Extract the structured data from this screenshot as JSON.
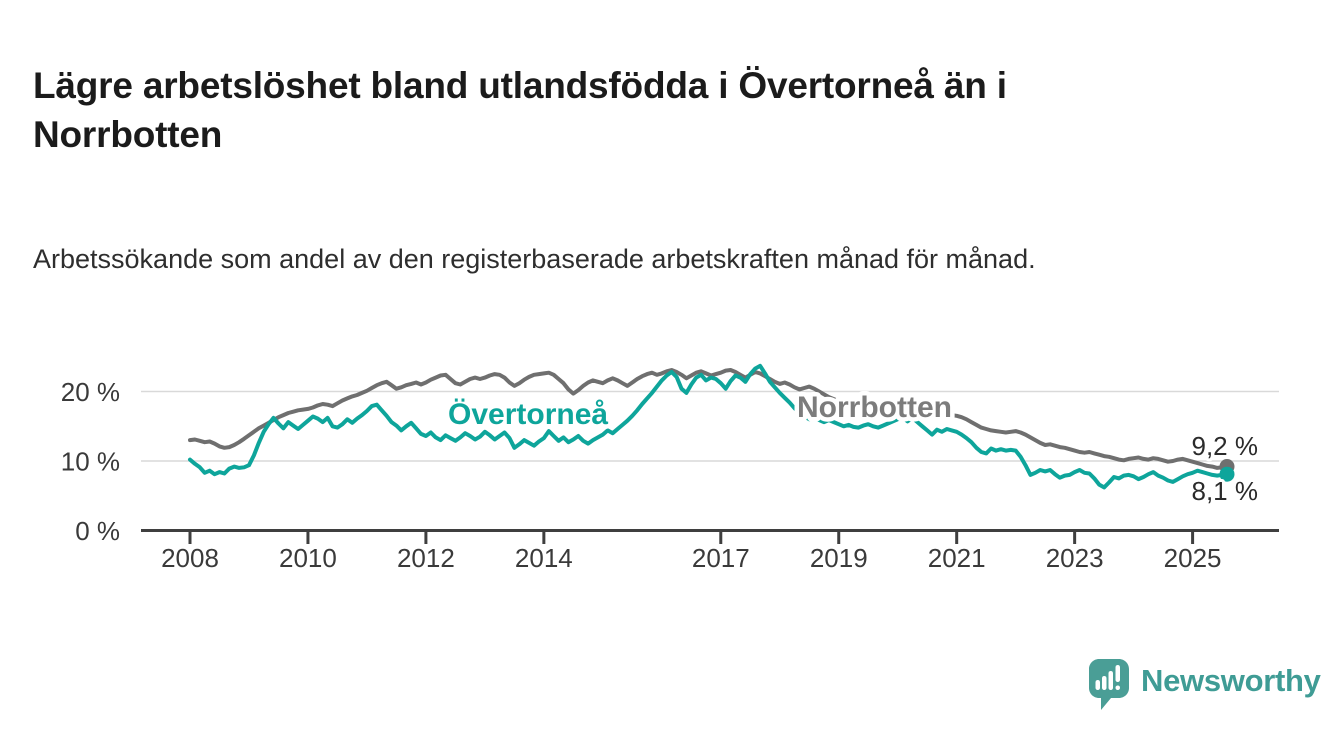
{
  "header": {
    "title": "Lägre arbetslöshet bland utlandsfödda i Övertorneå än i Norrbotten",
    "subtitle": "Arbetssökande som andel av den registerbaserade arbetskraften månad för månad."
  },
  "chart_data": {
    "type": "line",
    "x_unit": "month",
    "x_start": "2008-01",
    "x_end": "2025-08",
    "y_unit": "%",
    "ylim": [
      0,
      25
    ],
    "grid": "horizontal",
    "grid_color": "#d9d9d9",
    "axis_color": "#3f3f3f",
    "yticks": [
      {
        "value": 0,
        "label": "0 %"
      },
      {
        "value": 10,
        "label": "10 %"
      },
      {
        "value": 20,
        "label": "20 %"
      }
    ],
    "xticks": [
      {
        "label": "2008",
        "month_index": 0
      },
      {
        "label": "2010",
        "month_index": 24
      },
      {
        "label": "2012",
        "month_index": 48
      },
      {
        "label": "2014",
        "month_index": 72
      },
      {
        "label": "2017",
        "month_index": 108
      },
      {
        "label": "2019",
        "month_index": 132
      },
      {
        "label": "2021",
        "month_index": 156
      },
      {
        "label": "2023",
        "month_index": 180
      },
      {
        "label": "2025",
        "month_index": 204
      }
    ],
    "series": [
      {
        "name": "Övertorneå",
        "color": "#0ea59b",
        "label_color": "#0ea59b",
        "end_value": 8.1,
        "end_label": "8,1 %",
        "values": [
          10.2,
          9.6,
          9.1,
          8.3,
          8.6,
          8.1,
          8.4,
          8.2,
          8.9,
          9.2,
          9.0,
          9.1,
          9.4,
          10.8,
          12.6,
          14.2,
          15.3,
          16.2,
          15.4,
          14.7,
          15.6,
          15.1,
          14.6,
          15.2,
          15.8,
          16.4,
          16.1,
          15.6,
          16.2,
          15.0,
          14.8,
          15.3,
          16.0,
          15.5,
          16.1,
          16.6,
          17.2,
          17.9,
          18.1,
          17.3,
          16.5,
          15.6,
          15.1,
          14.4,
          15.0,
          15.5,
          14.7,
          13.9,
          13.6,
          14.1,
          13.4,
          13.0,
          13.7,
          13.3,
          12.9,
          13.4,
          14.0,
          13.6,
          13.1,
          13.5,
          14.2,
          13.7,
          13.1,
          13.6,
          14.1,
          13.3,
          11.9,
          12.4,
          13.0,
          12.6,
          12.2,
          12.8,
          13.3,
          14.3,
          13.6,
          12.9,
          13.4,
          12.7,
          13.1,
          13.6,
          12.9,
          12.5,
          13.0,
          13.4,
          13.8,
          14.4,
          14.0,
          14.6,
          15.2,
          15.8,
          16.5,
          17.3,
          18.2,
          19.0,
          19.8,
          20.7,
          21.6,
          22.3,
          22.8,
          22.1,
          20.4,
          19.8,
          21.0,
          22.0,
          22.4,
          21.6,
          22.0,
          21.8,
          21.2,
          20.4,
          21.5,
          22.3,
          22.0,
          21.4,
          22.5,
          23.3,
          23.7,
          22.6,
          21.4,
          20.6,
          19.8,
          19.1,
          18.4,
          17.6,
          16.9,
          16.4,
          16.0,
          16.3,
          15.9,
          15.6,
          15.9,
          15.6,
          15.3,
          15.0,
          15.2,
          14.9,
          14.8,
          15.1,
          15.3,
          15.0,
          14.8,
          15.1,
          15.4,
          15.7,
          16.0,
          16.3,
          15.7,
          16.2,
          15.6,
          15.0,
          14.4,
          13.8,
          14.5,
          14.2,
          14.6,
          14.4,
          14.2,
          13.8,
          13.3,
          12.7,
          11.9,
          11.3,
          11.1,
          11.8,
          11.5,
          11.7,
          11.5,
          11.6,
          11.5,
          10.6,
          9.4,
          8.0,
          8.3,
          8.7,
          8.5,
          8.7,
          8.1,
          7.6,
          7.9,
          8.0,
          8.4,
          8.7,
          8.3,
          8.2,
          7.5,
          6.6,
          6.2,
          6.9,
          7.7,
          7.5,
          7.9,
          8.0,
          7.8,
          7.4,
          7.7,
          8.1,
          8.4,
          7.9,
          7.6,
          7.2,
          7.0,
          7.4,
          7.8,
          8.1,
          8.3,
          8.6,
          8.4,
          8.2,
          8.0,
          7.9,
          8.0,
          8.1
        ]
      },
      {
        "name": "Norrbotten",
        "color": "#6f6f6f",
        "label_color": "#7c7c7c",
        "end_value": 9.2,
        "end_label": "9,2 %",
        "values": [
          13.0,
          13.1,
          12.9,
          12.7,
          12.8,
          12.5,
          12.1,
          11.9,
          12.0,
          12.3,
          12.7,
          13.2,
          13.7,
          14.2,
          14.7,
          15.1,
          15.5,
          15.9,
          16.3,
          16.6,
          16.9,
          17.1,
          17.3,
          17.4,
          17.5,
          17.7,
          18.0,
          18.2,
          18.1,
          17.9,
          18.3,
          18.7,
          19.0,
          19.3,
          19.5,
          19.8,
          20.1,
          20.5,
          20.9,
          21.2,
          21.4,
          20.9,
          20.4,
          20.6,
          20.9,
          21.1,
          21.3,
          21.0,
          21.3,
          21.7,
          22.0,
          22.3,
          22.4,
          21.8,
          21.2,
          21.0,
          21.4,
          21.8,
          22.0,
          21.8,
          22.0,
          22.3,
          22.5,
          22.4,
          22.0,
          21.3,
          20.8,
          21.2,
          21.7,
          22.1,
          22.4,
          22.5,
          22.6,
          22.7,
          22.4,
          21.8,
          21.2,
          20.3,
          19.7,
          20.2,
          20.8,
          21.3,
          21.6,
          21.4,
          21.2,
          21.6,
          21.9,
          21.6,
          21.2,
          20.8,
          21.3,
          21.8,
          22.2,
          22.5,
          22.7,
          22.4,
          22.6,
          22.9,
          23.1,
          22.8,
          22.4,
          21.9,
          22.3,
          22.7,
          22.9,
          22.6,
          22.3,
          22.5,
          22.7,
          23.0,
          23.1,
          22.8,
          22.4,
          22.0,
          22.4,
          22.8,
          22.6,
          22.2,
          21.8,
          21.4,
          21.1,
          21.3,
          21.0,
          20.6,
          20.3,
          20.5,
          20.7,
          20.4,
          20.0,
          19.6,
          19.2,
          18.9,
          18.6,
          18.4,
          18.1,
          17.9,
          17.7,
          17.6,
          17.8,
          17.9,
          17.7,
          17.5,
          17.3,
          17.2,
          17.3,
          17.6,
          18.0,
          18.4,
          18.6,
          18.3,
          17.9,
          17.5,
          17.2,
          16.9,
          16.7,
          16.6,
          16.5,
          16.3,
          16.0,
          15.6,
          15.2,
          14.8,
          14.6,
          14.4,
          14.3,
          14.2,
          14.1,
          14.2,
          14.3,
          14.1,
          13.8,
          13.4,
          13.0,
          12.6,
          12.3,
          12.4,
          12.2,
          12.0,
          11.9,
          11.7,
          11.5,
          11.3,
          11.2,
          11.3,
          11.1,
          10.9,
          10.7,
          10.6,
          10.4,
          10.2,
          10.1,
          10.3,
          10.4,
          10.5,
          10.3,
          10.2,
          10.4,
          10.3,
          10.1,
          9.9,
          10.0,
          10.2,
          10.3,
          10.1,
          9.9,
          9.7,
          9.5,
          9.3,
          9.2,
          9.0,
          9.1,
          9.2
        ]
      }
    ]
  },
  "footer": {
    "brand": "Newsworthy",
    "brand_color": "#3f9c95",
    "badge_color": "#4a9e96",
    "logo_icon": "bar-chart-speech-bubble-icon"
  }
}
